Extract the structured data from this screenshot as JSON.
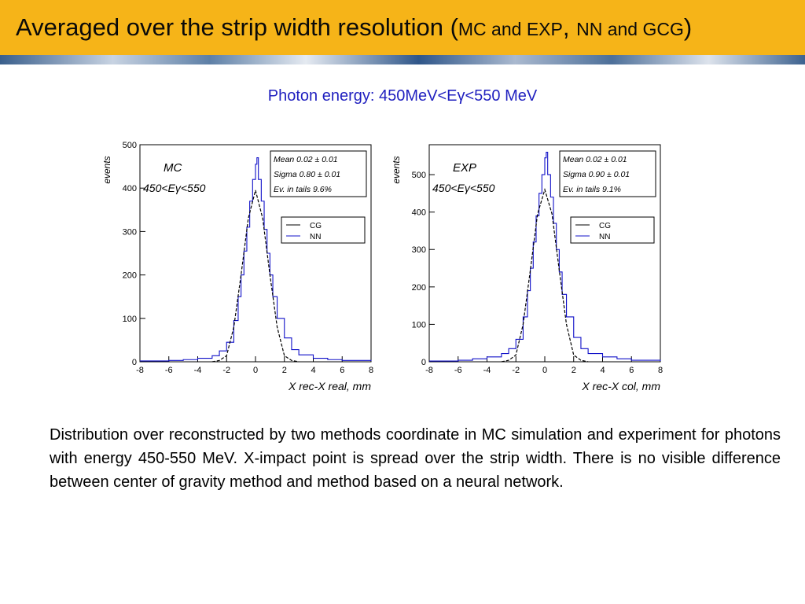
{
  "header": {
    "title_main": "Averaged over the strip width resolution (",
    "title_small_1": "MC and EXP",
    "title_sep": ", ",
    "title_small_2": "NN and GCG",
    "title_close": ")"
  },
  "subtitle": "Photon energy: 450MeV<Eγ<550 MeV",
  "chart_data": [
    {
      "type": "line",
      "label": "MC",
      "energy_label": "450<Eγ<550",
      "xlabel": "X rec-X real, mm",
      "ylabel": "events",
      "xlim": [
        -8,
        8
      ],
      "ylim": [
        0,
        500
      ],
      "xticks": [
        -8,
        -6,
        -4,
        -2,
        0,
        2,
        4,
        6,
        8
      ],
      "yticks": [
        0,
        100,
        200,
        300,
        400,
        500
      ],
      "stats": {
        "mean": "Mean  0.02 ± 0.01",
        "sigma": "Sigma  0.80 ± 0.01",
        "tails": "Ev. in tails  9.6%"
      },
      "legend": [
        {
          "name": "CG",
          "color": "#000000"
        },
        {
          "name": "NN",
          "color": "#1010c8"
        }
      ],
      "series": [
        {
          "name": "NN",
          "x": [
            -8,
            -6,
            -5,
            -4,
            -3,
            -2.5,
            -2,
            -1.5,
            -1.2,
            -1,
            -0.8,
            -0.6,
            -0.4,
            -0.2,
            0,
            0.1,
            0.2,
            0.4,
            0.6,
            0.8,
            1,
            1.2,
            1.5,
            2,
            2.5,
            3,
            4,
            5,
            6,
            8
          ],
          "y": [
            2,
            3,
            5,
            8,
            14,
            25,
            45,
            95,
            150,
            200,
            255,
            310,
            370,
            420,
            455,
            470,
            420,
            370,
            305,
            250,
            200,
            150,
            100,
            55,
            28,
            16,
            8,
            5,
            3,
            2
          ]
        },
        {
          "name": "CG",
          "x": [
            -3,
            -2.5,
            -2,
            -1.5,
            -1,
            -0.5,
            0,
            0.5,
            1,
            1.5,
            2,
            2.5,
            3
          ],
          "y": [
            0,
            3,
            14,
            80,
            200,
            330,
            395,
            330,
            200,
            80,
            14,
            3,
            0
          ]
        }
      ]
    },
    {
      "type": "line",
      "label": "EXP",
      "energy_label": "450<Eγ<550",
      "xlabel": "X rec-X col, mm",
      "ylabel": "events",
      "xlim": [
        -8,
        8
      ],
      "ylim": [
        0,
        580
      ],
      "xticks": [
        -8,
        -6,
        -4,
        -2,
        0,
        2,
        4,
        6,
        8
      ],
      "yticks": [
        0,
        100,
        200,
        300,
        400,
        500
      ],
      "stats": {
        "mean": "Mean  0.02 ± 0.01",
        "sigma": "Sigma  0.90 ± 0.01",
        "tails": "Ev. in tails  9.1%"
      },
      "legend": [
        {
          "name": "CG",
          "color": "#000000"
        },
        {
          "name": "NN",
          "color": "#1010c8"
        }
      ],
      "series": [
        {
          "name": "NN",
          "x": [
            -8,
            -6,
            -5,
            -4,
            -3,
            -2.5,
            -2,
            -1.5,
            -1.2,
            -1,
            -0.8,
            -0.6,
            -0.4,
            -0.2,
            0,
            0.1,
            0.2,
            0.4,
            0.6,
            0.8,
            1,
            1.2,
            1.5,
            2,
            2.5,
            3,
            4,
            5,
            6,
            8
          ],
          "y": [
            2,
            4,
            8,
            13,
            22,
            35,
            60,
            120,
            190,
            250,
            320,
            390,
            450,
            500,
            545,
            560,
            500,
            440,
            370,
            300,
            240,
            180,
            120,
            65,
            35,
            22,
            13,
            8,
            4,
            2
          ]
        },
        {
          "name": "CG",
          "x": [
            -3,
            -2.5,
            -2,
            -1.5,
            -1,
            -0.5,
            0,
            0.5,
            1,
            1.5,
            2,
            2.5,
            3
          ],
          "y": [
            0,
            4,
            18,
            100,
            245,
            395,
            460,
            395,
            245,
            100,
            18,
            4,
            0
          ]
        }
      ]
    }
  ],
  "body_text": "Distribution over reconstructed by two methods coordinate in MC simulation and experiment for photons with energy 450-550 MeV. X-impact point is spread over the strip width.  There is no visible difference between center of gravity method and method based on a neural network."
}
